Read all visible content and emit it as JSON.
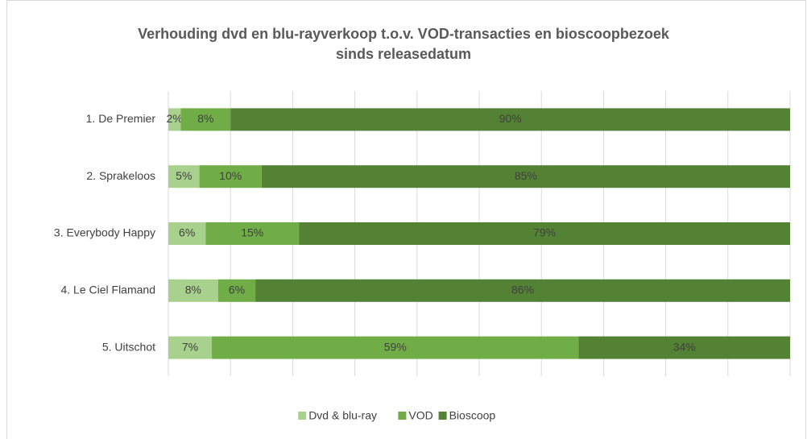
{
  "chart_data": {
    "type": "stacked_barh",
    "title": "Verhouding dvd en blu-rayverkoop t.o.v. VOD-transacties en bioscoopbezoek sinds releasedatum",
    "categories": [
      "1. De Premier",
      "2. Sprakeloos",
      "3. Everybody Happy",
      "4. Le Ciel Flamand",
      "5. Uitschot"
    ],
    "series": [
      {
        "name": "Dvd & blu-ray",
        "color": "#a9d18e",
        "values": [
          2,
          5,
          6,
          8,
          7
        ],
        "value_labels": [
          "2%",
          "5%",
          "6%",
          "8%",
          "7%"
        ]
      },
      {
        "name": "VOD",
        "color": "#70ad47",
        "values": [
          8,
          10,
          15,
          6,
          59
        ],
        "value_labels": [
          "8%",
          "10%",
          "15%",
          "6%",
          "59%"
        ]
      },
      {
        "name": "Bioscoop",
        "color": "#548235",
        "values": [
          90,
          85,
          79,
          86,
          34
        ],
        "value_labels": [
          "90%",
          "85%",
          "79%",
          "86%",
          "34%"
        ]
      }
    ],
    "xlim": [
      0,
      100
    ],
    "xticks": [
      0,
      10,
      20,
      30,
      40,
      50,
      60,
      70,
      80,
      90,
      100
    ],
    "grid": true,
    "legend": "bottom"
  }
}
